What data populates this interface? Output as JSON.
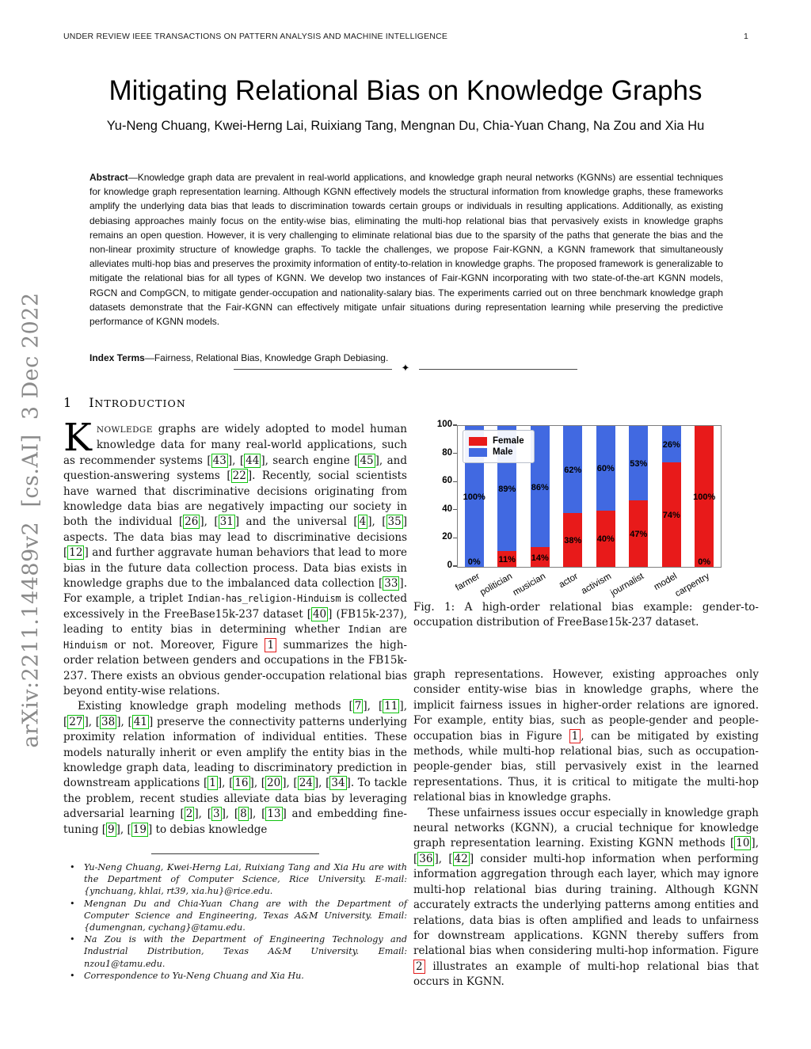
{
  "page": {
    "running_header": "UNDER REVIEW IEEE TRANSACTIONS ON PATTERN ANALYSIS AND MACHINE INTELLIGENCE",
    "page_number": "1",
    "arxiv_watermark": "arXiv:2211.14489v2  [cs.AI]  3 Dec 2022"
  },
  "title": "Mitigating Relational Bias on Knowledge Graphs",
  "authors": "Yu-Neng Chuang, Kwei-Herng Lai, Ruixiang Tang, Mengnan Du, Chia-Yuan Chang, Na Zou and Xia Hu",
  "abstract": {
    "label": "Abstract",
    "text": "—Knowledge graph data are prevalent in real-world applications, and knowledge graph neural networks (KGNNs) are essential techniques for knowledge graph representation learning. Although KGNN effectively models the structural information from knowledge graphs, these frameworks amplify the underlying data bias that leads to discrimination towards certain groups or individuals in resulting applications. Additionally, as existing debiasing approaches mainly focus on the entity-wise bias, eliminating the multi-hop relational bias that pervasively exists in knowledge graphs remains an open question. However, it is very challenging to eliminate relational bias due to the sparsity of the paths that generate the bias and the non-linear proximity structure of knowledge graphs. To tackle the challenges, we propose Fair-KGNN, a KGNN framework that simultaneously alleviates multi-hop bias and preserves the proximity information of entity-to-relation in knowledge graphs. The proposed framework is generalizable to mitigate the relational bias for all types of KGNN. We develop two instances of Fair-KGNN incorporating with two state-of-the-art KGNN models, RGCN and CompGCN, to mitigate gender-occupation and nationality-salary bias. The experiments carried out on three benchmark knowledge graph datasets demonstrate that the Fair-KGNN can effectively mitigate unfair situations during representation learning while preserving the predictive performance of KGNN models."
  },
  "index_terms": {
    "label": "Index Terms",
    "text": "—Fairness, Relational Bias, Knowledge Graph Debiasing."
  },
  "separator_glyph": "✦",
  "section": {
    "number": "1",
    "cap": "I",
    "rest": "NTRODUCTION"
  },
  "col1": {
    "dropcap": "K",
    "para1": [
      {
        "sc": "NOWLEDGE"
      },
      {
        "t": " graphs are widely adopted to model human knowledge data for many real-world applications, such as recommender systems "
      },
      {
        "c": "43"
      },
      {
        "t": ", "
      },
      {
        "c": "44"
      },
      {
        "t": ", search engine "
      },
      {
        "c": "45"
      },
      {
        "t": ", and question-answering systems "
      },
      {
        "c": "22"
      },
      {
        "t": ". Recently, social scientists have warned that discriminative decisions originating from knowledge data bias are negatively impacting our society in both the individual "
      },
      {
        "c": "26"
      },
      {
        "t": ", "
      },
      {
        "c": "31"
      },
      {
        "t": " and the universal "
      },
      {
        "c": "4"
      },
      {
        "t": ", "
      },
      {
        "c": "35"
      },
      {
        "t": " aspects. The data bias may lead to discriminative decisions "
      },
      {
        "c": "12"
      },
      {
        "t": " and further aggravate human behaviors that lead to more bias in the future data collection process. Data bias exists in knowledge graphs due to the imbalanced data collection "
      },
      {
        "c": "33"
      },
      {
        "t": ". For example, a triplet "
      },
      {
        "m": "Indian-has_religion-Hinduism"
      },
      {
        "t": " is collected excessively in the FreeBase15k-237 dataset "
      },
      {
        "c": "40"
      },
      {
        "t": " (FB15k-237), leading to entity bias in determining whether "
      },
      {
        "m": "Indian"
      },
      {
        "t": " are "
      },
      {
        "m": "Hinduism"
      },
      {
        "t": " or not. Moreover, Figure "
      },
      {
        "f": "1"
      },
      {
        "t": " summarizes the high-order relation between genders and occupations in the FB15k-237. There exists an obvious gender-occupation relational bias beyond entity-wise relations."
      }
    ],
    "para2": [
      {
        "t": "Existing knowledge graph modeling methods "
      },
      {
        "c": "7"
      },
      {
        "t": ", "
      },
      {
        "c": "11"
      },
      {
        "t": ", "
      },
      {
        "c": "27"
      },
      {
        "t": ", "
      },
      {
        "c": "38"
      },
      {
        "t": ", "
      },
      {
        "c": "41"
      },
      {
        "t": " preserve the connectivity patterns underlying proximity relation information of individual entities. These models naturally inherit or even amplify the entity bias in the knowledge graph data, leading to discriminatory prediction in downstream applications "
      },
      {
        "c": "1"
      },
      {
        "t": ", "
      },
      {
        "c": "16"
      },
      {
        "t": ", "
      },
      {
        "c": "20"
      },
      {
        "t": ", "
      },
      {
        "c": "24"
      },
      {
        "t": ", "
      },
      {
        "c": "34"
      },
      {
        "t": ". To tackle the problem, recent studies alleviate data bias by leveraging adversarial learning "
      },
      {
        "c": "2"
      },
      {
        "t": ", "
      },
      {
        "c": "3"
      },
      {
        "t": ", "
      },
      {
        "c": "8"
      },
      {
        "t": ", "
      },
      {
        "c": "13"
      },
      {
        "t": " and embedding fine-tuning "
      },
      {
        "c": "9"
      },
      {
        "t": ", "
      },
      {
        "c": "19"
      },
      {
        "t": " to debias knowledge"
      }
    ]
  },
  "col2": {
    "para1": [
      {
        "t": "graph representations. However, existing approaches only consider entity-wise bias in knowledge graphs, where the implicit fairness issues in higher-order relations are ignored. For example, entity bias, such as people-gender and people-occupation bias in Figure "
      },
      {
        "f": "1"
      },
      {
        "t": ", can be mitigated by existing methods, while multi-hop relational bias, such as occupation-people-gender bias, still pervasively exist in the learned representations. Thus, it is critical to mitigate the multi-hop relational bias in knowledge graphs."
      }
    ],
    "para2": [
      {
        "t": "These unfairness issues occur especially in knowledge graph neural networks (KGNN), a crucial technique for knowledge graph representation learning. Existing KGNN methods "
      },
      {
        "c": "10"
      },
      {
        "t": ", "
      },
      {
        "c": "36"
      },
      {
        "t": ", "
      },
      {
        "c": "42"
      },
      {
        "t": " consider multi-hop information when performing information aggregation through each layer, which may ignore multi-hop relational bias during training. Although KGNN accurately extracts the underlying patterns among entities and relations, data bias is often amplified and leads to unfairness for downstream applications. KGNN thereby suffers from relational bias when considering multi-hop information. Figure "
      },
      {
        "f": "2"
      },
      {
        "t": " illustrates an example of multi-hop relational bias that occurs in KGNN."
      }
    ]
  },
  "figure": {
    "caption": "Fig. 1: A high-order relational bias example: gender-to-occupation distribution of FreeBase15k-237 dataset."
  },
  "footnotes": [
    "Yu-Neng Chuang, Kwei-Herng Lai, Ruixiang Tang and Xia Hu are with the Department of Computer Science, Rice University. E-mail: {ynchuang, khlai, rt39, xia.hu}@rice.edu.",
    "Mengnan Du and Chia-Yuan Chang are with the Department of Computer Science and Engineering, Texas A&M University. Email: {dumengnan, cychang}@tamu.edu.",
    "Na Zou is with the Department of Engineering Technology and Industrial Distribution, Texas A&M University. Email: nzou1@tamu.edu.",
    "Correspondence to Yu-Neng Chuang and Xia Hu."
  ],
  "chart_data": {
    "type": "bar",
    "stacked": true,
    "title": "",
    "xlabel": "",
    "ylabel": "",
    "categories": [
      "farmer",
      "politician",
      "musician",
      "actor",
      "activism",
      "journalist",
      "model",
      "carpentry"
    ],
    "series": [
      {
        "name": "Female",
        "color": "#e81a1a",
        "values": [
          0,
          11,
          14,
          38,
          40,
          47,
          74,
          100
        ]
      },
      {
        "name": "Male",
        "color": "#4169e1",
        "values": [
          100,
          89,
          86,
          62,
          60,
          53,
          26,
          0
        ]
      }
    ],
    "bar_label_suffix": "%",
    "ylim": [
      0,
      100
    ],
    "yticks": [
      0,
      20,
      40,
      60,
      80,
      100
    ],
    "grid": false,
    "legend_position": "upper left"
  }
}
